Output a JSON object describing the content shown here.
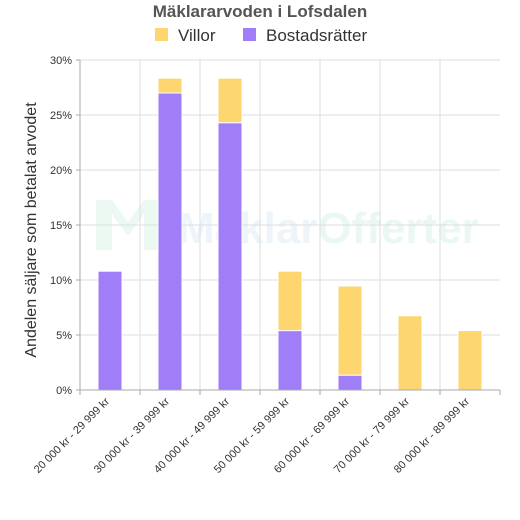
{
  "chart_data": {
    "type": "bar",
    "stacked": true,
    "title": "Mäklararvoden i Lofsdalen",
    "ylabel": "Andelen säljare som betalat arvodet",
    "xlabel": "",
    "ylim": [
      0,
      30
    ],
    "yticks": [
      "0%",
      "5%",
      "10%",
      "15%",
      "20%",
      "25%",
      "30%"
    ],
    "ytick_values": [
      0,
      5,
      10,
      15,
      20,
      25,
      30
    ],
    "grid": true,
    "legend_position": "top",
    "categories": [
      "20 000 kr - 29 999 kr",
      "30 000 kr - 39 999 kr",
      "40 000 kr - 49 999 kr",
      "50 000 kr - 59 999 kr",
      "60 000 kr - 69 999 kr",
      "70 000 kr - 79 999 kr",
      "80 000 kr - 89 999 kr"
    ],
    "series": [
      {
        "name": "Bostadsrätter",
        "color": "#a07ef8",
        "values": [
          10.8,
          27.0,
          24.3,
          5.4,
          1.35,
          0,
          0
        ]
      },
      {
        "name": "Villor",
        "color": "#fdd670",
        "values": [
          0,
          1.35,
          4.05,
          5.4,
          8.1,
          6.75,
          5.4
        ]
      }
    ],
    "legend": [
      {
        "name": "Villor",
        "color": "#fdd670"
      },
      {
        "name": "Bostadsrätter",
        "color": "#a07ef8"
      }
    ]
  },
  "watermark": {
    "text_a": "Mäklar",
    "text_b": "Offerter",
    "color_a": "#7ab8e0",
    "color_b": "#6fcf97"
  }
}
